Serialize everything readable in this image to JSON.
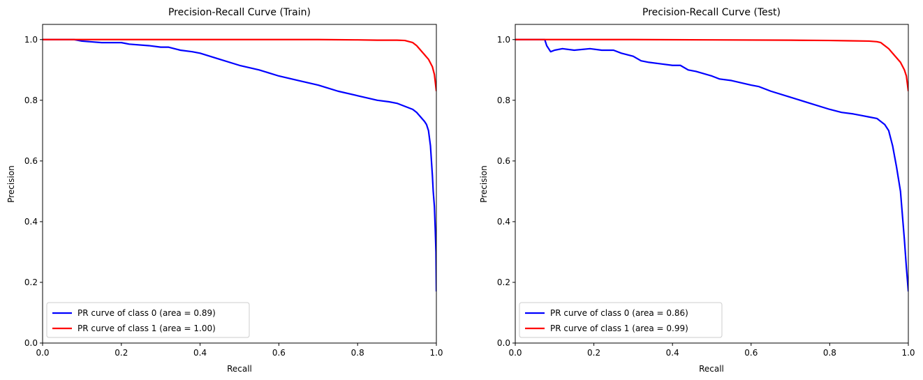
{
  "chart_data": [
    {
      "type": "line",
      "title": "Precision-Recall Curve (Train)",
      "xlabel": "Recall",
      "ylabel": "Precision",
      "xlim": [
        0.0,
        1.0
      ],
      "ylim": [
        0.0,
        1.05
      ],
      "xticks": [
        "0.0",
        "0.2",
        "0.4",
        "0.6",
        "0.8",
        "1.0"
      ],
      "yticks": [
        "0.0",
        "0.2",
        "0.4",
        "0.6",
        "0.8",
        "1.0"
      ],
      "grid": false,
      "legend_position": "lower-left",
      "series": [
        {
          "name": "PR curve of class 0 (area = 0.89)",
          "color": "#0000ff",
          "x": [
            0.0,
            0.08,
            0.1,
            0.15,
            0.2,
            0.22,
            0.27,
            0.3,
            0.32,
            0.35,
            0.38,
            0.4,
            0.45,
            0.5,
            0.55,
            0.6,
            0.65,
            0.7,
            0.75,
            0.8,
            0.85,
            0.88,
            0.9,
            0.92,
            0.94,
            0.95,
            0.96,
            0.97,
            0.975,
            0.98,
            0.985,
            0.99,
            0.992,
            0.995,
            0.997,
            0.999,
            1.0
          ],
          "y": [
            1.0,
            1.0,
            0.995,
            0.99,
            0.99,
            0.985,
            0.98,
            0.975,
            0.975,
            0.965,
            0.96,
            0.955,
            0.935,
            0.915,
            0.9,
            0.88,
            0.865,
            0.85,
            0.83,
            0.815,
            0.8,
            0.795,
            0.79,
            0.78,
            0.77,
            0.76,
            0.745,
            0.73,
            0.72,
            0.7,
            0.65,
            0.55,
            0.5,
            0.45,
            0.38,
            0.3,
            0.17
          ]
        },
        {
          "name": "PR curve of class 1 (area = 1.00)",
          "color": "#ff0000",
          "x": [
            0.0,
            0.1,
            0.3,
            0.5,
            0.7,
            0.8,
            0.85,
            0.9,
            0.92,
            0.94,
            0.95,
            0.96,
            0.97,
            0.98,
            0.99,
            0.995,
            1.0
          ],
          "y": [
            1.0,
            1.0,
            1.0,
            1.0,
            1.0,
            0.999,
            0.998,
            0.998,
            0.997,
            0.99,
            0.98,
            0.965,
            0.95,
            0.935,
            0.91,
            0.885,
            0.83
          ]
        }
      ]
    },
    {
      "type": "line",
      "title": "Precision-Recall Curve (Test)",
      "xlabel": "Recall",
      "ylabel": "Precision",
      "xlim": [
        0.0,
        1.0
      ],
      "ylim": [
        0.0,
        1.05
      ],
      "xticks": [
        "0.0",
        "0.2",
        "0.4",
        "0.6",
        "0.8",
        "1.0"
      ],
      "yticks": [
        "0.0",
        "0.2",
        "0.4",
        "0.6",
        "0.8",
        "1.0"
      ],
      "grid": false,
      "legend_position": "lower-left",
      "series": [
        {
          "name": "PR curve of class 0 (area = 0.86)",
          "color": "#0000ff",
          "x": [
            0.0,
            0.075,
            0.08,
            0.09,
            0.1,
            0.12,
            0.15,
            0.19,
            0.22,
            0.25,
            0.27,
            0.3,
            0.32,
            0.34,
            0.37,
            0.4,
            0.42,
            0.44,
            0.46,
            0.5,
            0.52,
            0.55,
            0.6,
            0.62,
            0.65,
            0.7,
            0.75,
            0.8,
            0.83,
            0.86,
            0.88,
            0.9,
            0.92,
            0.94,
            0.95,
            0.96,
            0.97,
            0.98,
            0.985,
            0.99,
            0.995,
            1.0
          ],
          "y": [
            1.0,
            1.0,
            0.98,
            0.96,
            0.965,
            0.97,
            0.965,
            0.97,
            0.965,
            0.965,
            0.955,
            0.945,
            0.93,
            0.925,
            0.92,
            0.915,
            0.915,
            0.9,
            0.895,
            0.88,
            0.87,
            0.865,
            0.85,
            0.845,
            0.83,
            0.81,
            0.79,
            0.77,
            0.76,
            0.755,
            0.75,
            0.745,
            0.74,
            0.72,
            0.7,
            0.65,
            0.58,
            0.5,
            0.42,
            0.34,
            0.25,
            0.17
          ]
        },
        {
          "name": "PR curve of class 1 (area = 0.99)",
          "color": "#ff0000",
          "x": [
            0.0,
            0.1,
            0.3,
            0.5,
            0.7,
            0.8,
            0.85,
            0.9,
            0.92,
            0.93,
            0.94,
            0.95,
            0.96,
            0.97,
            0.98,
            0.99,
            0.995,
            1.0
          ],
          "y": [
            1.0,
            1.0,
            1.0,
            0.999,
            0.998,
            0.997,
            0.996,
            0.995,
            0.993,
            0.99,
            0.98,
            0.97,
            0.955,
            0.94,
            0.925,
            0.9,
            0.88,
            0.83
          ]
        }
      ]
    }
  ]
}
